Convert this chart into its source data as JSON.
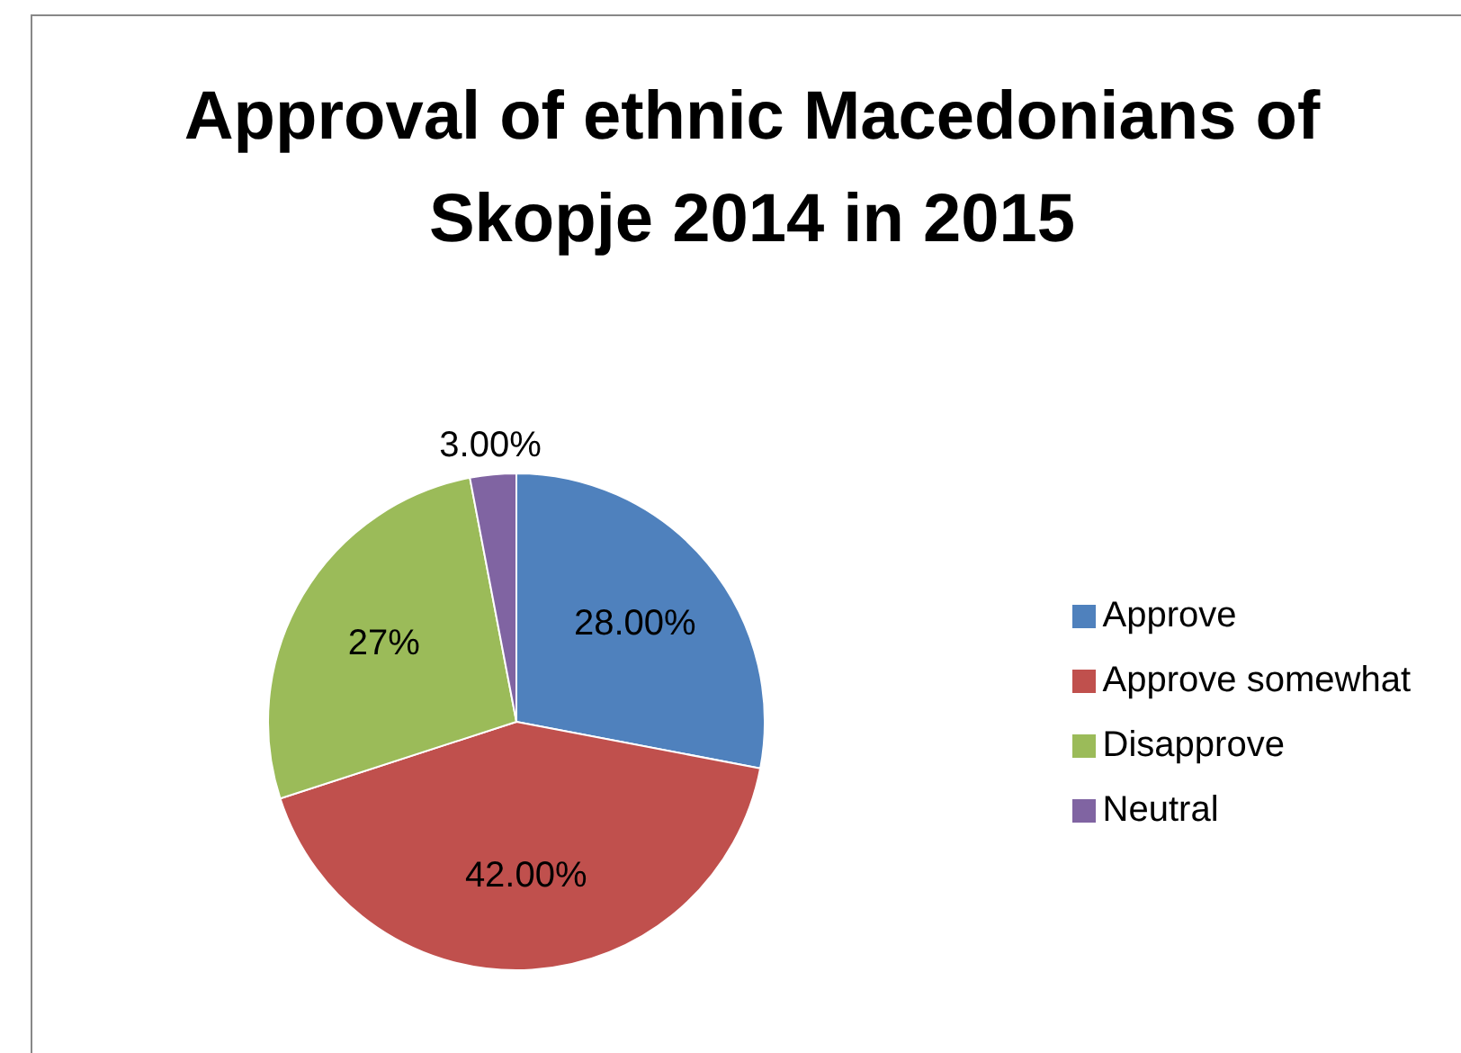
{
  "chart_data": {
    "type": "pie",
    "title": "Approval of ethnic Macedonians of Skopje 2014 in 2015",
    "categories": [
      "Approve",
      "Approve somewhat",
      "Disapprove",
      "Neutral"
    ],
    "values": [
      28,
      42,
      27,
      3
    ],
    "colors": [
      "#4f81bd",
      "#c0504d",
      "#9bbb59",
      "#8064a2"
    ],
    "value_labels": [
      "28.00%",
      "42.00%",
      "27%",
      "3.00%"
    ],
    "legend": "right"
  }
}
